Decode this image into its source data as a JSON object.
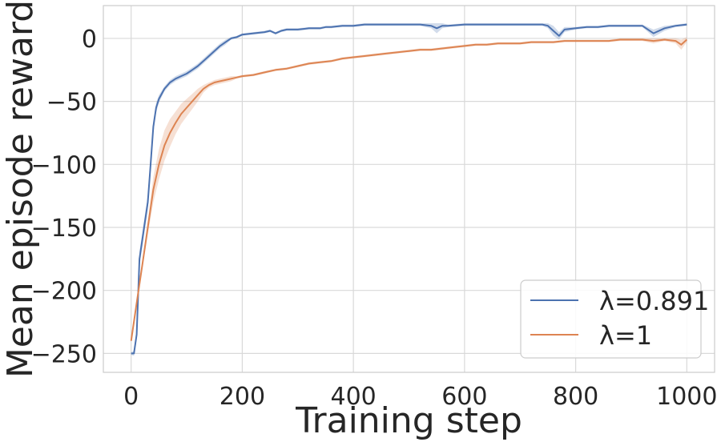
{
  "chart_data": {
    "type": "line",
    "title": "",
    "xlabel": "Training step",
    "ylabel": "Mean episode reward",
    "xlim": [
      -50,
      1050
    ],
    "ylim": [
      -265,
      26
    ],
    "xticks": [
      0,
      200,
      400,
      600,
      800,
      1000
    ],
    "yticks": [
      -250,
      -200,
      -150,
      -100,
      -50,
      0
    ],
    "xtick_labels": [
      "0",
      "200",
      "400",
      "600",
      "800",
      "1000"
    ],
    "ytick_labels": [
      "−250",
      "−200",
      "−150",
      "−100",
      "−50",
      "0"
    ],
    "grid": true,
    "legend_position": "bottom-right",
    "series": [
      {
        "name": "λ=0.891",
        "color": "#4c72b0",
        "x": [
          0,
          5,
          10,
          15,
          20,
          30,
          35,
          40,
          45,
          50,
          60,
          70,
          80,
          90,
          100,
          110,
          120,
          130,
          140,
          150,
          160,
          170,
          180,
          190,
          200,
          220,
          240,
          250,
          260,
          270,
          280,
          300,
          320,
          340,
          350,
          360,
          380,
          400,
          420,
          440,
          460,
          480,
          500,
          520,
          540,
          550,
          560,
          570,
          600,
          620,
          640,
          660,
          680,
          700,
          720,
          740,
          750,
          760,
          770,
          780,
          800,
          820,
          840,
          860,
          880,
          900,
          920,
          940,
          960,
          980,
          1000
        ],
        "y": [
          -250,
          -250,
          -235,
          -175,
          -160,
          -130,
          -100,
          -70,
          -55,
          -48,
          -40,
          -35,
          -32,
          -30,
          -28,
          -25,
          -22,
          -18,
          -14,
          -10,
          -6,
          -3,
          0,
          1,
          3,
          4,
          5,
          6,
          4,
          6,
          7,
          7,
          8,
          8,
          9,
          9,
          10,
          10,
          11,
          11,
          11,
          11,
          11,
          11,
          10,
          8,
          10,
          10,
          11,
          11,
          11,
          11,
          11,
          11,
          11,
          11,
          10,
          6,
          2,
          7,
          8,
          9,
          9,
          10,
          10,
          10,
          10,
          4,
          8,
          10,
          11
        ],
        "band": [
          1,
          2,
          4,
          6,
          6,
          6,
          6,
          5,
          4,
          3,
          2,
          2,
          2,
          2,
          2,
          2,
          2,
          2,
          2,
          2,
          2,
          2,
          1,
          1,
          1,
          1,
          1,
          1,
          1,
          1,
          1,
          1,
          1,
          1,
          1,
          1,
          1,
          1,
          1,
          1,
          1,
          1,
          1,
          1,
          2,
          4,
          2,
          1,
          1,
          1,
          1,
          1,
          1,
          1,
          1,
          1,
          2,
          4,
          3,
          2,
          1,
          1,
          1,
          1,
          1,
          1,
          1,
          3,
          2,
          1,
          1
        ]
      },
      {
        "name": "λ=1",
        "color": "#dd8452",
        "x": [
          0,
          10,
          20,
          30,
          40,
          50,
          60,
          70,
          80,
          90,
          100,
          110,
          120,
          130,
          140,
          150,
          160,
          170,
          180,
          190,
          200,
          220,
          240,
          260,
          280,
          300,
          320,
          340,
          360,
          380,
          400,
          420,
          440,
          460,
          480,
          500,
          520,
          540,
          560,
          580,
          600,
          620,
          640,
          660,
          680,
          700,
          720,
          740,
          760,
          780,
          800,
          820,
          840,
          860,
          880,
          900,
          920,
          940,
          960,
          980,
          990,
          1000
        ],
        "y": [
          -240,
          -210,
          -180,
          -150,
          -120,
          -100,
          -85,
          -75,
          -67,
          -60,
          -55,
          -50,
          -45,
          -40,
          -37,
          -35,
          -34,
          -33,
          -32,
          -31,
          -30,
          -29,
          -27,
          -25,
          -24,
          -22,
          -20,
          -19,
          -18,
          -16,
          -15,
          -14,
          -13,
          -12,
          -11,
          -10,
          -9,
          -9,
          -8,
          -7,
          -6,
          -5,
          -5,
          -4,
          -4,
          -4,
          -3,
          -3,
          -3,
          -2,
          -2,
          -2,
          -2,
          -2,
          -1,
          -1,
          -1,
          -2,
          -1,
          -2,
          -5,
          -1
        ],
        "band": [
          1,
          2,
          3,
          6,
          10,
          12,
          12,
          11,
          9,
          8,
          7,
          6,
          5,
          3,
          2,
          2,
          2,
          2,
          2,
          1,
          1,
          1,
          1,
          1,
          1,
          1,
          1,
          1,
          1,
          1,
          1,
          1,
          1,
          1,
          1,
          1,
          1,
          1,
          1,
          1,
          1,
          1,
          1,
          1,
          1,
          1,
          1,
          1,
          1,
          1,
          1,
          1,
          1,
          1,
          1,
          1,
          1,
          2,
          1,
          2,
          4,
          2
        ]
      }
    ]
  }
}
